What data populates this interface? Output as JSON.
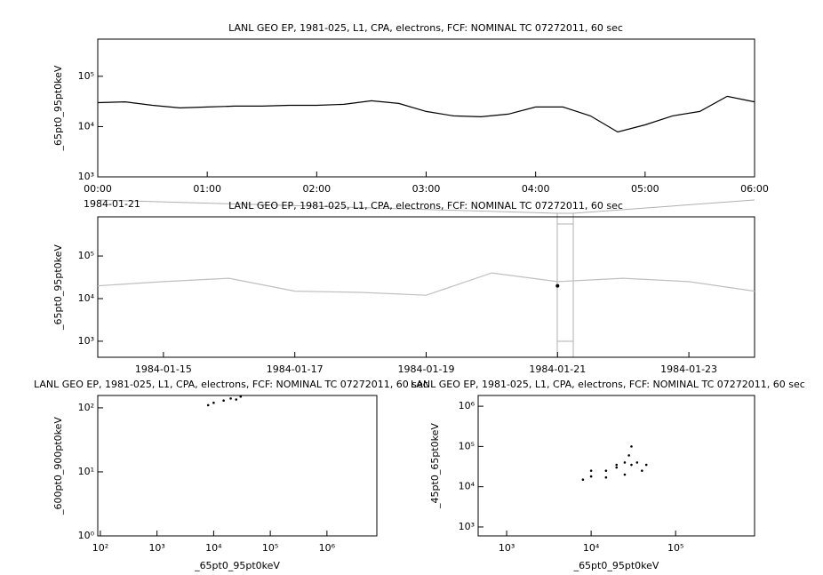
{
  "chart_data": [
    {
      "type": "line",
      "title": "LANL GEO EP, 1981-025, L1, CPA, electrons, FCF: NOMINAL TC 07272011, 60 sec",
      "ylabel": "_65pt0_95pt0keV",
      "annotation": "1984-01-21",
      "ylog": true,
      "color": "#000000",
      "x": [
        "00:00",
        "00:15",
        "00:30",
        "00:45",
        "01:00",
        "01:15",
        "01:30",
        "01:45",
        "02:00",
        "02:15",
        "02:30",
        "02:45",
        "03:00",
        "03:15",
        "03:30",
        "03:45",
        "04:00",
        "04:15",
        "04:30",
        "04:45",
        "05:00",
        "05:15",
        "05:30",
        "05:45",
        "06:00"
      ],
      "values": [
        30000,
        31000,
        26500,
        23500,
        24500,
        25500,
        25500,
        26500,
        26500,
        27700,
        32600,
        28900,
        20000,
        16300,
        15700,
        17700,
        24500,
        24500,
        16300,
        7800,
        10800,
        16300,
        20000,
        40000,
        31000
      ],
      "xlim": [
        "00:00",
        "06:00"
      ],
      "xticks": [
        "00:00",
        "01:00",
        "02:00",
        "03:00",
        "04:00",
        "05:00",
        "06:00"
      ],
      "ylim": [
        1000,
        550000
      ],
      "yticks": [
        {
          "value": 1000,
          "label": "10³"
        },
        {
          "value": 10000,
          "label": "10⁴"
        },
        {
          "value": 100000,
          "label": "10⁵"
        }
      ]
    },
    {
      "type": "line",
      "title": "LANL GEO EP, 1981-025, L1, CPA, electrons, FCF: NOMINAL TC 07272011, 60 sec",
      "ylabel": "_65pt0_95pt0keV",
      "ylog": true,
      "x": [
        "1984-01-14",
        "1984-01-15",
        "1984-01-16",
        "1984-01-17",
        "1984-01-18",
        "1984-01-19",
        "1984-01-20",
        "1984-01-21",
        "1984-01-22",
        "1984-01-23",
        "1984-01-24"
      ],
      "series": [
        {
          "color": "#c0c0c0",
          "values": [
            20000,
            25000,
            30000,
            15000,
            14000,
            12000,
            40000,
            25000,
            30000,
            25000,
            15000
          ]
        },
        {
          "color": "#000000",
          "values": [
            null,
            null,
            null,
            null,
            null,
            null,
            null,
            20000,
            null,
            null,
            null
          ]
        }
      ],
      "xlim": [
        "1984-01-14",
        "1984-01-24"
      ],
      "xticks": [
        "1984-01-15",
        "1984-01-17",
        "1984-01-19",
        "1984-01-21",
        "1984-01-23"
      ],
      "ylim": [
        420,
        830000
      ],
      "yticks": [
        {
          "value": 1000,
          "label": "10³"
        },
        {
          "value": 10000,
          "label": "10⁴"
        },
        {
          "value": 100000,
          "label": "10⁵"
        }
      ]
    },
    {
      "type": "scatter",
      "title": "LANL GEO EP, 1981-025, L1, CPA, electrons, FCF: NOMINAL TC 07272011, 60 sec",
      "xlabel": "_65pt0_95pt0keV",
      "ylabel": "_600pt0_900pt0keV",
      "xlog": true,
      "ylog": true,
      "color": "#000000",
      "x": [
        8000,
        10000,
        15000,
        20000,
        25000,
        30000
      ],
      "values": [
        110,
        120,
        130,
        140,
        135,
        150
      ],
      "xlim": [
        90,
        7600000
      ],
      "ylim": [
        1,
        156
      ],
      "xticks": [
        {
          "value": 100,
          "label": "10²"
        },
        {
          "value": 1000,
          "label": "10³"
        },
        {
          "value": 10000,
          "label": "10⁴"
        },
        {
          "value": 100000,
          "label": "10⁵"
        },
        {
          "value": 1000000,
          "label": "10⁶"
        }
      ],
      "yticks": [
        {
          "value": 1,
          "label": "10⁰"
        },
        {
          "value": 10,
          "label": "10¹"
        },
        {
          "value": 100,
          "label": "10²"
        }
      ]
    },
    {
      "type": "scatter",
      "title": "LANL GEO EP, 1981-025, L1, CPA, electrons, FCF: NOMINAL TC 07272011, 60 sec",
      "xlabel": "_65pt0_95pt0keV",
      "ylabel": "_45pt0_65pt0keV",
      "xlog": true,
      "ylog": true,
      "color": "#000000",
      "x": [
        8000,
        10000,
        15000,
        20000,
        25000,
        30000,
        28000,
        35000,
        45000,
        40000,
        25000,
        15000,
        10000,
        20000,
        30000
      ],
      "values": [
        15000,
        18000,
        25000,
        30000,
        40000,
        100000,
        60000,
        40000,
        35000,
        25000,
        20000,
        17000,
        25000,
        35000,
        35000
      ],
      "xlim": [
        460,
        860000
      ],
      "ylim": [
        600,
        1850000
      ],
      "xticks": [
        {
          "value": 1000,
          "label": "10³"
        },
        {
          "value": 10000,
          "label": "10⁴"
        },
        {
          "value": 100000,
          "label": "10⁵"
        }
      ],
      "yticks": [
        {
          "value": 1000,
          "label": "10³"
        },
        {
          "value": 10000,
          "label": "10⁴"
        },
        {
          "value": 100000,
          "label": "10⁵"
        },
        {
          "value": 1000000,
          "label": "10⁶"
        }
      ]
    }
  ]
}
